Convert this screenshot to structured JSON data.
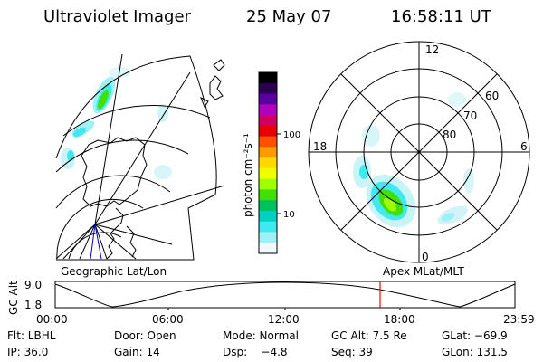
{
  "header": {
    "instrument": "Ultraviolet Imager",
    "date": "25 May 07",
    "time": "16:58:11 UT"
  },
  "colorbar": {
    "label": "photon cm⁻²s⁻¹",
    "ticks": [
      "100",
      "10"
    ],
    "colors": [
      "#000000",
      "#2a0050",
      "#5a00a0",
      "#b000c0",
      "#d00060",
      "#e80000",
      "#ff5000",
      "#ff9a00",
      "#ffd800",
      "#f0ff00",
      "#a0ff00",
      "#40e000",
      "#00c060",
      "#00d0c0",
      "#40e8f0",
      "#a0f0f8",
      "#f0fafc"
    ]
  },
  "left_map": {
    "caption": "Geographic Lat/Lon"
  },
  "right_map": {
    "caption": "Apex MLat/MLT",
    "mlt_labels": {
      "top": "12",
      "left": "18",
      "right": "6",
      "bottom": "0"
    },
    "lat_labels": [
      "60",
      "70",
      "80"
    ]
  },
  "timeline": {
    "ylabel": "GC Alt",
    "ytick_top": "9.0",
    "ytick_bottom": "1.8",
    "xticks": [
      "00:00",
      "06:00",
      "12:00",
      "18:00",
      "23:59"
    ],
    "marker_color": "#ff0000"
  },
  "info": {
    "row1": [
      "Flt: LBHL",
      "Door: Open",
      "Mode: Normal",
      "GC Alt: 7.5 Re",
      "GLat: −69.9"
    ],
    "row2": [
      "IP: 36.0",
      "Gain: 14",
      "Dsp:    −4.8",
      "Seq: 39",
      "GLon: 131.5"
    ]
  }
}
